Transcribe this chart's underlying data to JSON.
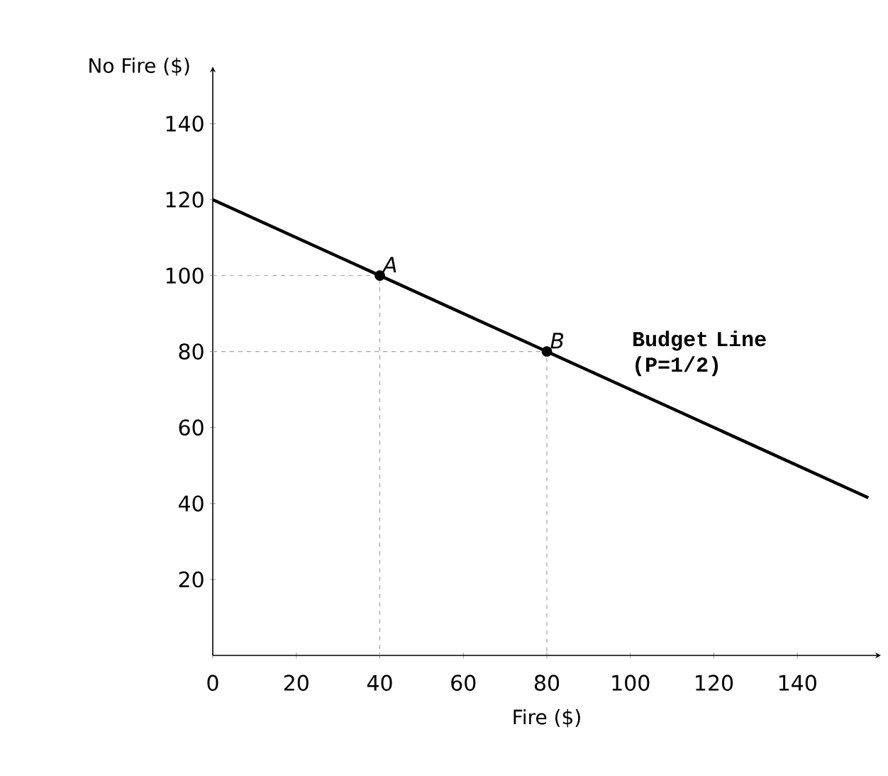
{
  "chart_data": {
    "type": "line",
    "xlabel": "Fire ($)",
    "ylabel": "No Fire ($)",
    "xlim": [
      0,
      160
    ],
    "ylim": [
      0,
      155
    ],
    "xticks": [
      0,
      20,
      40,
      60,
      80,
      100,
      120,
      140
    ],
    "yticks": [
      20,
      40,
      60,
      80,
      100,
      120,
      140
    ],
    "grid": false,
    "series": [
      {
        "color": "#000000",
        "x": [
          0,
          157
        ],
        "values": [
          120,
          41.5
        ]
      },
      {
        "type": "line",
        "color": "#a6a6a6",
        "line_style": "dashed",
        "x": [
          0,
          40,
          40
        ],
        "values": [
          100,
          100,
          0
        ]
      },
      {
        "type": "line",
        "color": "#a6a6a6",
        "line_style": "dashed",
        "x": [
          0,
          80,
          80
        ],
        "values": [
          80,
          80,
          0
        ]
      },
      {
        "type": "scatter",
        "color": "#000000",
        "marker": "circle",
        "x": [
          40,
          80
        ],
        "values": [
          100,
          80
        ]
      }
    ],
    "annotations": [
      {
        "text": "A",
        "x": 40,
        "y": 100
      },
      {
        "text": "B",
        "x": 80,
        "y": 80
      },
      "Budget Line (P=1/2)"
    ]
  }
}
